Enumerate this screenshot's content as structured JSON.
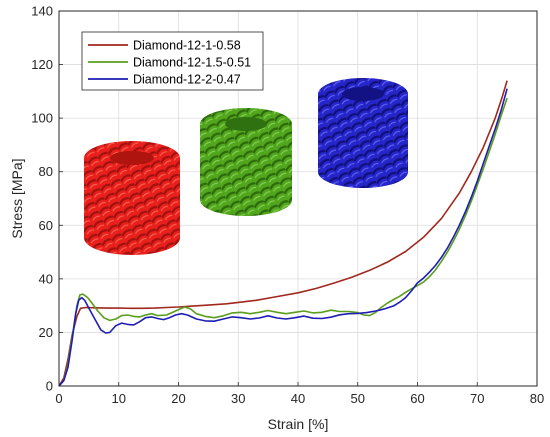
{
  "chart_data": {
    "type": "line",
    "title": "",
    "xlabel": "Strain [%]",
    "ylabel": "Stress [MPa]",
    "xlim": [
      0,
      80
    ],
    "ylim": [
      0,
      140
    ],
    "xticks": [
      0,
      10,
      20,
      30,
      40,
      50,
      60,
      70,
      80
    ],
    "yticks": [
      0,
      20,
      40,
      60,
      80,
      100,
      120,
      140
    ],
    "xtick_labels": [
      "0",
      "10",
      "20",
      "30",
      "40",
      "50",
      "60",
      "70",
      "80"
    ],
    "ytick_labels": [
      "0",
      "20",
      "40",
      "60",
      "80",
      "100",
      "120",
      "140"
    ],
    "grid": true,
    "legend_position": "top-left",
    "series": [
      {
        "name": "Diamond-12-1-0.58",
        "color": "#a0281e",
        "points": [
          [
            0,
            0
          ],
          [
            0.8,
            3
          ],
          [
            1.5,
            10
          ],
          [
            2.2,
            19
          ],
          [
            3,
            26
          ],
          [
            3.6,
            29
          ],
          [
            4.5,
            29.3
          ],
          [
            6,
            29.2
          ],
          [
            8,
            29.1
          ],
          [
            10,
            29.1
          ],
          [
            12,
            29.0
          ],
          [
            14,
            29.0
          ],
          [
            16,
            29.1
          ],
          [
            18,
            29.3
          ],
          [
            20,
            29.5
          ],
          [
            22,
            29.8
          ],
          [
            25,
            30.2
          ],
          [
            28,
            30.7
          ],
          [
            30,
            31.2
          ],
          [
            33,
            32
          ],
          [
            36,
            33.2
          ],
          [
            40,
            34.8
          ],
          [
            43,
            36.4
          ],
          [
            46,
            38.4
          ],
          [
            49,
            40.6
          ],
          [
            52,
            43.2
          ],
          [
            55,
            46.3
          ],
          [
            58,
            50.2
          ],
          [
            61,
            55.5
          ],
          [
            64,
            62.5
          ],
          [
            67,
            72
          ],
          [
            69,
            80
          ],
          [
            71,
            89
          ],
          [
            73,
            100
          ],
          [
            74.2,
            108
          ],
          [
            75,
            114
          ]
        ]
      },
      {
        "name": "Diamond-12-1.5-0.51",
        "color": "#5a9e1e",
        "points": [
          [
            0,
            0
          ],
          [
            0.8,
            2
          ],
          [
            1.5,
            8
          ],
          [
            2.2,
            18
          ],
          [
            3,
            30
          ],
          [
            3.5,
            34
          ],
          [
            4,
            34.3
          ],
          [
            4.8,
            33
          ],
          [
            5.5,
            31
          ],
          [
            6.5,
            28
          ],
          [
            7.5,
            25.5
          ],
          [
            8.5,
            24.5
          ],
          [
            9.5,
            25
          ],
          [
            10.5,
            26.3
          ],
          [
            11.5,
            26.5
          ],
          [
            12.5,
            26
          ],
          [
            13.5,
            25.8
          ],
          [
            14.5,
            26.5
          ],
          [
            15.5,
            27
          ],
          [
            16.5,
            26.3
          ],
          [
            18,
            26.5
          ],
          [
            19.5,
            28
          ],
          [
            21,
            29.5
          ],
          [
            22,
            28.8
          ],
          [
            23,
            27
          ],
          [
            24.5,
            26
          ],
          [
            26,
            25.5
          ],
          [
            27.5,
            26.2
          ],
          [
            29,
            27.3
          ],
          [
            30.5,
            27.5
          ],
          [
            32,
            27
          ],
          [
            33.5,
            27.5
          ],
          [
            35,
            28.2
          ],
          [
            36.5,
            27.5
          ],
          [
            38,
            27
          ],
          [
            39.5,
            27.5
          ],
          [
            41,
            28
          ],
          [
            42.5,
            27.3
          ],
          [
            44,
            27.5
          ],
          [
            45.5,
            28.3
          ],
          [
            47,
            27.8
          ],
          [
            48.5,
            27.8
          ],
          [
            50,
            27.4
          ],
          [
            51,
            26.5
          ],
          [
            52,
            26.3
          ],
          [
            53,
            27.5
          ],
          [
            54,
            29.5
          ],
          [
            55,
            31
          ],
          [
            56,
            32.3
          ],
          [
            57,
            33.5
          ],
          [
            58,
            35
          ],
          [
            59,
            36.3
          ],
          [
            60,
            37.5
          ],
          [
            61,
            38.8
          ],
          [
            62,
            40.8
          ],
          [
            63,
            43.3
          ],
          [
            64,
            46.5
          ],
          [
            65,
            50
          ],
          [
            66,
            54
          ],
          [
            67,
            58.5
          ],
          [
            68,
            63.5
          ],
          [
            69,
            69
          ],
          [
            70,
            75
          ],
          [
            71,
            81
          ],
          [
            72,
            87.5
          ],
          [
            73,
            94
          ],
          [
            74,
            101
          ],
          [
            75,
            107.5
          ]
        ]
      },
      {
        "name": "Diamond-12-2-0.47",
        "color": "#1e1eb4",
        "points": [
          [
            0,
            0
          ],
          [
            0.8,
            2
          ],
          [
            1.5,
            7
          ],
          [
            2.2,
            17
          ],
          [
            2.8,
            27
          ],
          [
            3.3,
            32
          ],
          [
            3.8,
            33
          ],
          [
            4.3,
            32
          ],
          [
            5,
            29
          ],
          [
            6,
            25
          ],
          [
            7,
            21
          ],
          [
            7.8,
            19.8
          ],
          [
            8.5,
            20
          ],
          [
            9.5,
            22.5
          ],
          [
            10.5,
            23.5
          ],
          [
            11.5,
            23
          ],
          [
            12.5,
            22.8
          ],
          [
            13.5,
            24
          ],
          [
            14.5,
            25.5
          ],
          [
            15.5,
            25.8
          ],
          [
            16.5,
            25.2
          ],
          [
            17.5,
            24.8
          ],
          [
            18.5,
            25.5
          ],
          [
            19.5,
            26.5
          ],
          [
            20.5,
            27
          ],
          [
            21.5,
            26.5
          ],
          [
            23,
            25
          ],
          [
            24.5,
            24.3
          ],
          [
            26,
            24.2
          ],
          [
            27.5,
            25
          ],
          [
            29,
            25.8
          ],
          [
            30.5,
            25.5
          ],
          [
            32,
            25
          ],
          [
            33.5,
            25.4
          ],
          [
            35,
            26.2
          ],
          [
            36.5,
            25.4
          ],
          [
            38,
            25
          ],
          [
            39.5,
            25.5
          ],
          [
            41,
            26.1
          ],
          [
            42.5,
            25.3
          ],
          [
            44,
            25.2
          ],
          [
            45.5,
            25.7
          ],
          [
            47,
            26.6
          ],
          [
            48.5,
            27
          ],
          [
            50,
            27.1
          ],
          [
            51.5,
            27.4
          ],
          [
            53,
            28
          ],
          [
            54.5,
            28.8
          ],
          [
            56,
            29.9
          ],
          [
            57,
            31.3
          ],
          [
            58,
            33
          ],
          [
            59,
            35.5
          ],
          [
            60,
            38.5
          ],
          [
            61,
            40.3
          ],
          [
            62,
            42.5
          ],
          [
            63,
            45
          ],
          [
            64,
            48
          ],
          [
            65,
            51.5
          ],
          [
            66,
            55.5
          ],
          [
            67,
            60
          ],
          [
            68,
            65
          ],
          [
            69,
            70.5
          ],
          [
            70,
            76.5
          ],
          [
            71,
            83
          ],
          [
            72,
            89.5
          ],
          [
            73,
            96
          ],
          [
            74,
            103
          ],
          [
            75,
            111
          ]
        ]
      }
    ],
    "inset_images": [
      {
        "name": "red-cylinder-image",
        "color": "#e8201c"
      },
      {
        "name": "green-cylinder-image",
        "color": "#52a61e"
      },
      {
        "name": "blue-cylinder-image",
        "color": "#2626c8"
      }
    ]
  }
}
